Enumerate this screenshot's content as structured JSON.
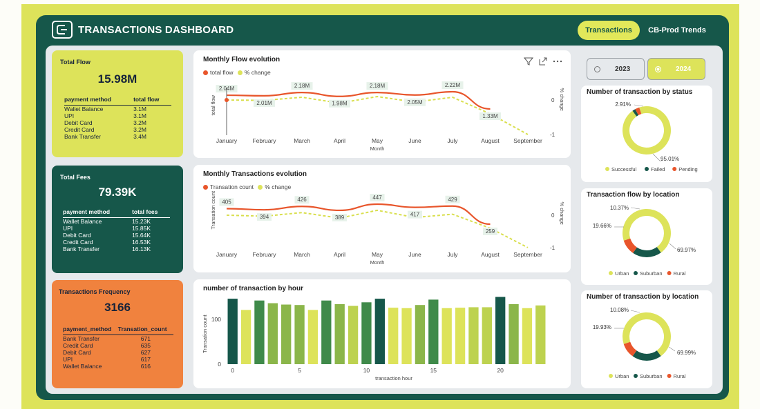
{
  "header": {
    "title": "TRANSACTIONS DASHBOARD",
    "nav": [
      {
        "label": "Transactions",
        "active": true
      },
      {
        "label": "CB-Prod Trends",
        "active": false
      }
    ]
  },
  "colors": {
    "dark_green": "#16574a",
    "lime": "#dde35a",
    "orange": "#f0823e",
    "red_line": "#e8552b"
  },
  "kpis": {
    "total_flow": {
      "title": "Total Flow",
      "value": "15.98M",
      "columns": [
        "payment method",
        "total flow"
      ],
      "rows": [
        [
          "Wallet Balance",
          "3.1M"
        ],
        [
          "UPI",
          "3.1M"
        ],
        [
          "Debit Card",
          "3.2M"
        ],
        [
          "Credit Card",
          "3.2M"
        ],
        [
          "Bank Transfer",
          "3.4M"
        ]
      ]
    },
    "total_fees": {
      "title": "Total Fees",
      "value": "79.39K",
      "columns": [
        "payment method",
        "total fees"
      ],
      "rows": [
        [
          "Wallet Balance",
          "15.23K"
        ],
        [
          "UPI",
          "15.85K"
        ],
        [
          "Debit Card",
          "15.64K"
        ],
        [
          "Credit Card",
          "16.53K"
        ],
        [
          "Bank Transfer",
          "16.13K"
        ]
      ]
    },
    "frequency": {
      "title": "Transactions Frequency",
      "value": "3166",
      "columns": [
        "payment_method",
        "Transation_count"
      ],
      "rows": [
        [
          "Bank Transfer",
          "671"
        ],
        [
          "Credit Card",
          "635"
        ],
        [
          "Debit Card",
          "627"
        ],
        [
          "UPI",
          "617"
        ],
        [
          "Wallet Balance",
          "616"
        ]
      ]
    }
  },
  "year_slicer": [
    {
      "label": "2023",
      "selected": false
    },
    {
      "label": "2024",
      "selected": true
    }
  ],
  "visual_icons": [
    "filter-icon",
    "focus-mode-icon",
    "more-options-icon"
  ],
  "chart_data": [
    {
      "type": "line",
      "title": "Monthly Flow evolution",
      "xlabel": "Month",
      "ylabel": "total flow",
      "y2label": "% change",
      "categories": [
        "January",
        "February",
        "March",
        "April",
        "May",
        "June",
        "July",
        "August",
        "September"
      ],
      "series": [
        {
          "name": "total flow",
          "values": [
            2.04,
            2.01,
            2.18,
            1.98,
            2.18,
            2.05,
            2.22,
            1.33,
            null
          ],
          "labels": [
            "2.04M",
            "2.01M",
            "2.18M",
            "1.98M",
            "2.18M",
            "2.05M",
            "2.22M",
            "1.33M",
            ""
          ]
        },
        {
          "name": "% change",
          "axis": "secondary",
          "values": [
            0,
            -0.01,
            0.08,
            -0.09,
            0.1,
            -0.06,
            0.08,
            -0.4,
            -1
          ]
        }
      ],
      "y2_ticks": [
        "0",
        "-1"
      ]
    },
    {
      "type": "line",
      "title": "Monthly Transactions evolution",
      "xlabel": "Month",
      "ylabel": "Transation count",
      "y2label": "% change",
      "categories": [
        "January",
        "February",
        "March",
        "April",
        "May",
        "June",
        "July",
        "August",
        "September"
      ],
      "series": [
        {
          "name": "Transation count",
          "values": [
            405,
            394,
            426,
            389,
            447,
            417,
            429,
            259,
            null
          ],
          "labels": [
            "405",
            "394",
            "426",
            "389",
            "447",
            "417",
            "429",
            "259",
            ""
          ]
        },
        {
          "name": "% change",
          "axis": "secondary",
          "values": [
            0,
            -0.03,
            0.08,
            -0.09,
            0.15,
            -0.07,
            0.03,
            -0.4,
            -1
          ]
        }
      ],
      "y2_ticks": [
        "0",
        "-1"
      ]
    },
    {
      "type": "bar",
      "title": "number of transaction by hour",
      "xlabel": "transaction hour",
      "ylabel": "Transation count",
      "x": [
        0,
        1,
        2,
        3,
        4,
        5,
        6,
        7,
        8,
        9,
        10,
        11,
        12,
        13,
        14,
        15,
        16,
        17,
        18,
        19,
        20,
        21,
        22,
        23
      ],
      "values": [
        146,
        121,
        142,
        136,
        133,
        132,
        121,
        142,
        134,
        130,
        138,
        146,
        126,
        125,
        132,
        144,
        125,
        126,
        127,
        127,
        150,
        134,
        125,
        131
      ],
      "ylim": [
        0,
        160
      ],
      "yticks": [
        0,
        100
      ],
      "xticks": [
        0,
        5,
        10,
        15,
        20
      ]
    },
    {
      "type": "pie",
      "title": "Number of transaction by status",
      "labels": [
        "Successful",
        "Failed",
        "Pending"
      ],
      "values": [
        95.01,
        2.08,
        2.91
      ],
      "colors": [
        "#dde35a",
        "#16574a",
        "#e8552b"
      ],
      "data_labels": [
        "95.01%",
        "",
        "2.91%"
      ]
    },
    {
      "type": "pie",
      "title": "Transaction flow by location",
      "labels": [
        "Urban",
        "Suburban",
        "Rural"
      ],
      "values": [
        69.97,
        19.66,
        10.37
      ],
      "colors": [
        "#dde35a",
        "#16574a",
        "#e8552b"
      ],
      "data_labels": [
        "69.97%",
        "19.66%",
        "10.37%"
      ]
    },
    {
      "type": "pie",
      "title": "Number of transaction by location",
      "labels": [
        "Urban",
        "Suburban",
        "Rural"
      ],
      "values": [
        69.99,
        19.93,
        10.08
      ],
      "colors": [
        "#dde35a",
        "#16574a",
        "#e8552b"
      ],
      "data_labels": [
        "69.99%",
        "19.93%",
        "10.08%"
      ]
    }
  ]
}
